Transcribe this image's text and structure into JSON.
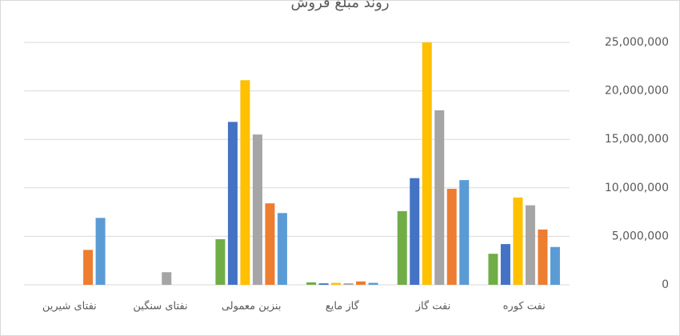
{
  "chart_data": {
    "type": "bar",
    "title": "روند مبلغ فروش",
    "categories": [
      "نفت کوره",
      "نفت گاز",
      "گاز مایع",
      "بنزین معمولی",
      "نفتای سنگین",
      "نفتای شیرین"
    ],
    "series": [
      {
        "color": "#70ad47",
        "values": [
          3200000,
          7600000,
          250000,
          4700000,
          0,
          0
        ]
      },
      {
        "color": "#4472c4",
        "values": [
          4200000,
          11000000,
          150000,
          16800000,
          0,
          0
        ]
      },
      {
        "color": "#ffc000",
        "values": [
          9000000,
          25000000,
          200000,
          21100000,
          0,
          0
        ]
      },
      {
        "color": "#a5a5a5",
        "values": [
          8200000,
          18000000,
          150000,
          15500000,
          1300000,
          0
        ]
      },
      {
        "color": "#ed7d31",
        "values": [
          5700000,
          9900000,
          350000,
          8400000,
          0,
          3600000
        ]
      },
      {
        "color": "#5b9bd5",
        "values": [
          3900000,
          10800000,
          200000,
          7400000,
          0,
          6900000
        ]
      }
    ],
    "ylim": [
      0,
      25000000
    ],
    "yticks": [
      0,
      {
        "value": 5000000,
        "label": "5,000,000"
      },
      {
        "value": 10000000,
        "label": "10,000,000"
      },
      {
        "value": 15000000,
        "label": "15,000,000"
      },
      {
        "value": 20000000,
        "label": "20,000,000"
      },
      {
        "value": 25000000,
        "label": "25,000,000"
      }
    ],
    "grid": true
  }
}
